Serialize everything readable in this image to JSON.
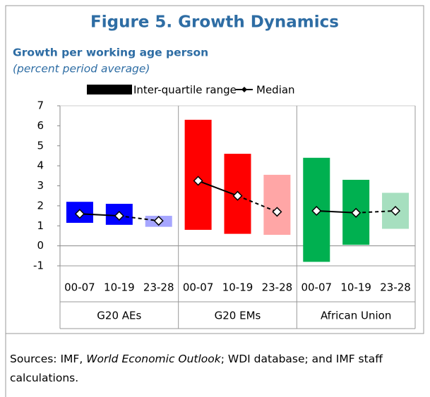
{
  "chart_data": {
    "type": "floating_bar",
    "title": "Figure 5. Growth Dynamics",
    "subtitle": "Growth per working age person",
    "unit_note": "(percent period average)",
    "categories": [
      "00-07",
      "10-19",
      "23-28",
      "00-07",
      "10-19",
      "23-28",
      "00-07",
      "10-19",
      "23-28"
    ],
    "groups": [
      "G20 AEs",
      "G20 EMs",
      "African Union"
    ],
    "series": [
      {
        "name": "Inter-quartile range",
        "color": "#000000",
        "low": [
          1.15,
          1.05,
          0.95,
          0.8,
          0.6,
          0.55,
          -0.8,
          0.05,
          0.85
        ],
        "high": [
          2.2,
          2.1,
          1.5,
          6.3,
          4.6,
          3.55,
          4.4,
          3.3,
          2.65
        ],
        "colors": [
          "#0000ff",
          "#0000ff",
          "#a6a6ff",
          "#ff0000",
          "#ff0000",
          "#ffa6a6",
          "#00b050",
          "#00b050",
          "#a6dfbf"
        ]
      },
      {
        "name": "Median",
        "color": "#000000",
        "values": [
          1.6,
          1.5,
          1.25,
          3.25,
          2.5,
          1.7,
          1.75,
          1.65,
          1.75
        ]
      }
    ],
    "ylim": [
      -1,
      7
    ],
    "yticks": [
      -1,
      0,
      1,
      2,
      3,
      4,
      5,
      6,
      7
    ],
    "sources": {
      "before": "Sources: IMF, ",
      "italic": "World Economic Outlook",
      "after": "; WDI database; and IMF staff calculations."
    }
  }
}
